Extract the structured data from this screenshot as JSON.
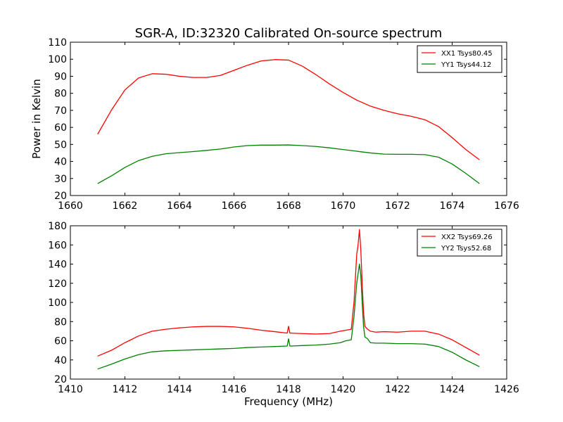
{
  "title": "SGR-A, ID:32320 Calibrated On-source spectrum",
  "chart_data": [
    {
      "type": "line",
      "ylabel": "Power in Kelvin",
      "xlabel": "",
      "xlim": [
        1660,
        1676
      ],
      "ylim": [
        20,
        110
      ],
      "xticks": [
        1660,
        1662,
        1664,
        1666,
        1668,
        1670,
        1672,
        1674,
        1676
      ],
      "yticks": [
        20,
        30,
        40,
        50,
        60,
        70,
        80,
        90,
        100,
        110
      ],
      "grid": false,
      "legend_position": "top-right",
      "series": [
        {
          "name": "XX1 Tsys80.45",
          "color": "#ff0000",
          "x": [
            1661.0,
            1661.5,
            1662.0,
            1662.5,
            1663.0,
            1663.5,
            1664.0,
            1664.5,
            1665.0,
            1665.5,
            1666.0,
            1666.5,
            1667.0,
            1667.5,
            1668.0,
            1668.5,
            1669.0,
            1669.5,
            1670.0,
            1670.5,
            1671.0,
            1671.5,
            1672.0,
            1672.5,
            1673.0,
            1673.5,
            1674.0,
            1674.5,
            1675.0
          ],
          "y": [
            56,
            70,
            82,
            89,
            91.5,
            91.2,
            90,
            89.3,
            89.3,
            90.5,
            93.5,
            96.5,
            99,
            99.8,
            99.5,
            96,
            91,
            85.5,
            80.5,
            76,
            72.5,
            70,
            68,
            66.5,
            64.5,
            60.5,
            54,
            47,
            41
          ]
        },
        {
          "name": "YY1 Tsys44.12",
          "color": "#008000",
          "x": [
            1661.0,
            1661.5,
            1662.0,
            1662.5,
            1663.0,
            1663.5,
            1664.0,
            1664.5,
            1665.0,
            1665.5,
            1666.0,
            1666.5,
            1667.0,
            1667.5,
            1668.0,
            1668.5,
            1669.0,
            1669.5,
            1670.0,
            1670.5,
            1671.0,
            1671.5,
            1672.0,
            1672.5,
            1673.0,
            1673.5,
            1674.0,
            1674.5,
            1675.0
          ],
          "y": [
            27,
            31.5,
            36.5,
            40.5,
            43,
            44.5,
            45.2,
            45.8,
            46.5,
            47.3,
            48.5,
            49.3,
            49.6,
            49.6,
            49.7,
            49.3,
            48.8,
            48,
            47,
            46,
            45,
            44.3,
            44.2,
            44.2,
            44,
            42.5,
            38.5,
            33,
            27
          ]
        }
      ]
    },
    {
      "type": "line",
      "ylabel": "",
      "xlabel": "Frequency (MHz)",
      "xlim": [
        1410,
        1426
      ],
      "ylim": [
        20,
        180
      ],
      "xticks": [
        1410,
        1412,
        1414,
        1416,
        1418,
        1420,
        1422,
        1424,
        1426
      ],
      "yticks": [
        20,
        40,
        60,
        80,
        100,
        120,
        140,
        160,
        180
      ],
      "grid": false,
      "legend_position": "top-right",
      "series": [
        {
          "name": "XX2 Tsys69.26",
          "color": "#ff0000",
          "x": [
            1411.0,
            1411.5,
            1412.0,
            1412.5,
            1413.0,
            1413.5,
            1414.0,
            1414.5,
            1415.0,
            1415.5,
            1416.0,
            1416.5,
            1417.0,
            1417.5,
            1417.95,
            1418.0,
            1418.05,
            1418.1,
            1418.5,
            1419.0,
            1419.5,
            1419.9,
            1420.1,
            1420.3,
            1420.4,
            1420.5,
            1420.55,
            1420.6,
            1420.65,
            1420.7,
            1420.75,
            1420.8,
            1420.9,
            1421.0,
            1421.2,
            1421.5,
            1422.0,
            1422.5,
            1423.0,
            1423.5,
            1424.0,
            1424.5,
            1425.0
          ],
          "y": [
            44,
            50,
            58,
            65,
            70,
            72,
            73.5,
            74.5,
            75,
            75,
            74.5,
            73,
            71,
            69.5,
            68,
            75,
            68,
            68,
            67.5,
            67,
            67.5,
            70,
            71,
            72,
            100,
            150,
            160,
            176,
            155,
            120,
            90,
            75,
            72,
            70,
            69,
            69.5,
            69,
            70,
            70,
            67,
            61,
            53,
            45
          ]
        },
        {
          "name": "YY2 Tsys52.68",
          "color": "#008000",
          "x": [
            1411.0,
            1411.5,
            1412.0,
            1412.5,
            1413.0,
            1413.5,
            1414.0,
            1414.5,
            1415.0,
            1415.5,
            1416.0,
            1416.5,
            1417.0,
            1417.5,
            1417.95,
            1418.0,
            1418.05,
            1418.1,
            1418.5,
            1419.0,
            1419.5,
            1419.9,
            1420.1,
            1420.3,
            1420.4,
            1420.5,
            1420.55,
            1420.6,
            1420.65,
            1420.7,
            1420.75,
            1420.8,
            1420.9,
            1421.0,
            1421.2,
            1421.5,
            1422.0,
            1422.5,
            1423.0,
            1423.5,
            1424.0,
            1424.5,
            1425.0
          ],
          "y": [
            30.5,
            35.5,
            41,
            45.5,
            48.5,
            49.5,
            50,
            50.5,
            51,
            51.5,
            52,
            53,
            53.5,
            54,
            54.5,
            62,
            54.5,
            54.5,
            55,
            55.5,
            56.5,
            58,
            60,
            61,
            85,
            120,
            130,
            140,
            128,
            100,
            75,
            64,
            62,
            58,
            57.5,
            57.5,
            57,
            57,
            56.5,
            54,
            48,
            40,
            33
          ]
        }
      ]
    }
  ]
}
